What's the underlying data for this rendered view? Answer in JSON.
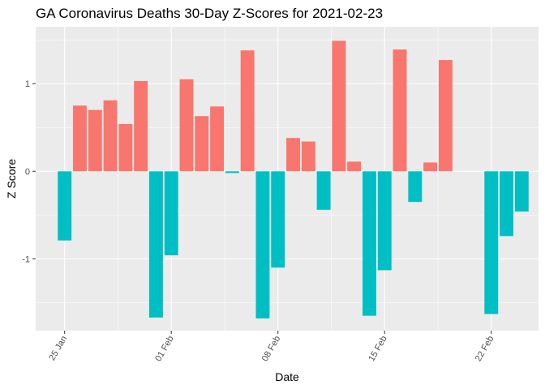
{
  "chart_data": {
    "type": "bar",
    "title": "GA Coronavirus Deaths 30-Day Z-Scores for 2021-02-23",
    "xlabel": "Date",
    "ylabel": "Z Score",
    "ylim": [
      -1.82,
      1.65
    ],
    "y_ticks": [
      -1,
      0,
      1
    ],
    "y_tick_labels": [
      "-1",
      "0",
      "1"
    ],
    "x_ticks": [
      {
        "day": 0,
        "label": "25 Jan"
      },
      {
        "day": 7,
        "label": "01 Feb"
      },
      {
        "day": 14,
        "label": "08 Feb"
      },
      {
        "day": 21,
        "label": "15 Feb"
      },
      {
        "day": 28,
        "label": "22 Feb"
      }
    ],
    "x_domain": [
      -1.9,
      31.1
    ],
    "dates": [
      "2021-01-25",
      "2021-01-26",
      "2021-01-27",
      "2021-01-28",
      "2021-01-29",
      "2021-01-30",
      "2021-01-31",
      "2021-02-01",
      "2021-02-02",
      "2021-02-03",
      "2021-02-04",
      "2021-02-05",
      "2021-02-06",
      "2021-02-07",
      "2021-02-08",
      "2021-02-09",
      "2021-02-10",
      "2021-02-11",
      "2021-02-12",
      "2021-02-13",
      "2021-02-14",
      "2021-02-15",
      "2021-02-16",
      "2021-02-17",
      "2021-02-18",
      "2021-02-19",
      "2021-02-20",
      "2021-02-21",
      "2021-02-22",
      "2021-02-23",
      "2021-02-24"
    ],
    "values": [
      -0.79,
      0.75,
      0.7,
      0.81,
      0.54,
      1.03,
      -1.67,
      -0.96,
      1.05,
      0.63,
      0.74,
      -0.02,
      1.38,
      -1.68,
      -1.1,
      0.38,
      0.34,
      -0.44,
      1.49,
      0.11,
      -1.65,
      -1.13,
      1.39,
      -0.35,
      0.1,
      1.27,
      null,
      null,
      -1.63,
      -0.74,
      -0.46
    ],
    "colors": {
      "positive": "#F8766D",
      "negative": "#00BFC4"
    },
    "panel_background": "#EBEBEB",
    "grid_color": "#FFFFFF"
  }
}
